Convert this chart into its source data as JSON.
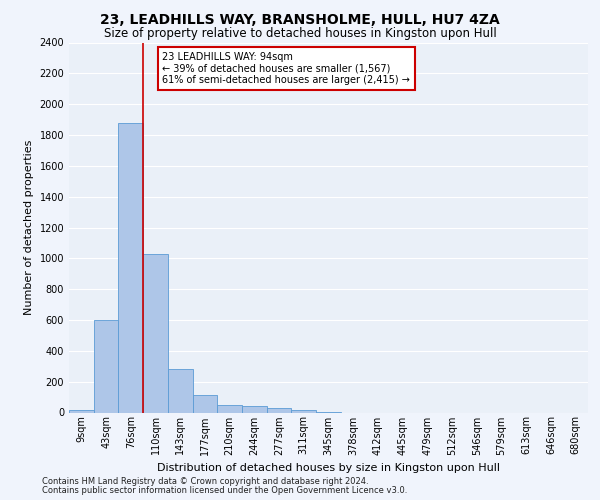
{
  "title": "23, LEADHILLS WAY, BRANSHOLME, HULL, HU7 4ZA",
  "subtitle": "Size of property relative to detached houses in Kingston upon Hull",
  "xlabel": "Distribution of detached houses by size in Kingston upon Hull",
  "ylabel": "Number of detached properties",
  "footnote1": "Contains HM Land Registry data © Crown copyright and database right 2024.",
  "footnote2": "Contains public sector information licensed under the Open Government Licence v3.0.",
  "bin_labels": [
    "9sqm",
    "43sqm",
    "76sqm",
    "110sqm",
    "143sqm",
    "177sqm",
    "210sqm",
    "244sqm",
    "277sqm",
    "311sqm",
    "345sqm",
    "378sqm",
    "412sqm",
    "445sqm",
    "479sqm",
    "512sqm",
    "546sqm",
    "579sqm",
    "613sqm",
    "646sqm",
    "680sqm"
  ],
  "bar_values": [
    15,
    600,
    1880,
    1030,
    285,
    115,
    50,
    45,
    30,
    15,
    5,
    0,
    0,
    0,
    0,
    0,
    0,
    0,
    0,
    0,
    0
  ],
  "bar_color": "#aec6e8",
  "bar_edge_color": "#5b9bd5",
  "property_line_x": 2.5,
  "property_line_color": "#cc0000",
  "annotation_text": "23 LEADHILLS WAY: 94sqm\n← 39% of detached houses are smaller (1,567)\n61% of semi-detached houses are larger (2,415) →",
  "annotation_box_color": "#cc0000",
  "ylim": [
    0,
    2400
  ],
  "yticks": [
    0,
    200,
    400,
    600,
    800,
    1000,
    1200,
    1400,
    1600,
    1800,
    2000,
    2200,
    2400
  ],
  "background_color": "#eaf0f8",
  "grid_color": "#ffffff",
  "title_fontsize": 10,
  "subtitle_fontsize": 8.5,
  "ylabel_fontsize": 8,
  "xlabel_fontsize": 8,
  "tick_fontsize": 7,
  "annotation_fontsize": 7,
  "footnote_fontsize": 6
}
